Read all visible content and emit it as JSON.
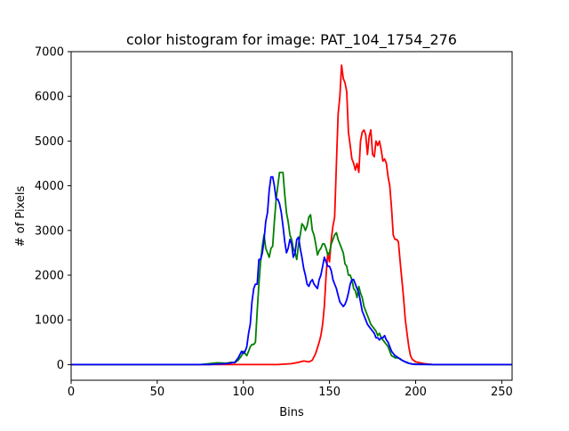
{
  "chart_data": {
    "type": "line",
    "title": "color histogram for image: PAT_104_1754_276",
    "xlabel": "Bins",
    "ylabel": "# of Pixels",
    "xlim": [
      0,
      256
    ],
    "ylim": [
      -350,
      7000
    ],
    "xticks": [
      0,
      50,
      100,
      150,
      200,
      250
    ],
    "yticks": [
      0,
      1000,
      2000,
      3000,
      4000,
      5000,
      6000,
      7000
    ],
    "grid": false,
    "legend": "none",
    "series": [
      {
        "color": "#ff0000",
        "points": [
          [
            0,
            0
          ],
          [
            60,
            0
          ],
          [
            100,
            0
          ],
          [
            110,
            0
          ],
          [
            120,
            0
          ],
          [
            128,
            20
          ],
          [
            132,
            50
          ],
          [
            135,
            80
          ],
          [
            138,
            60
          ],
          [
            140,
            100
          ],
          [
            142,
            250
          ],
          [
            144,
            500
          ],
          [
            145,
            650
          ],
          [
            146,
            900
          ],
          [
            147,
            1300
          ],
          [
            148,
            2000
          ],
          [
            149,
            2500
          ],
          [
            150,
            2300
          ],
          [
            151,
            2800
          ],
          [
            152,
            3100
          ],
          [
            153,
            3300
          ],
          [
            154,
            4500
          ],
          [
            155,
            5600
          ],
          [
            156,
            6000
          ],
          [
            157,
            6700
          ],
          [
            158,
            6400
          ],
          [
            159,
            6300
          ],
          [
            160,
            6100
          ],
          [
            161,
            5200
          ],
          [
            162,
            4900
          ],
          [
            163,
            4600
          ],
          [
            164,
            4500
          ],
          [
            165,
            4350
          ],
          [
            166,
            4500
          ],
          [
            167,
            4300
          ],
          [
            168,
            5000
          ],
          [
            169,
            5200
          ],
          [
            170,
            5250
          ],
          [
            171,
            5150
          ],
          [
            172,
            4700
          ],
          [
            173,
            5100
          ],
          [
            174,
            5250
          ],
          [
            175,
            4700
          ],
          [
            176,
            4650
          ],
          [
            177,
            5000
          ],
          [
            178,
            4900
          ],
          [
            179,
            5000
          ],
          [
            180,
            4800
          ],
          [
            181,
            4550
          ],
          [
            182,
            4600
          ],
          [
            183,
            4500
          ],
          [
            184,
            4200
          ],
          [
            185,
            4000
          ],
          [
            186,
            3500
          ],
          [
            187,
            2900
          ],
          [
            188,
            2800
          ],
          [
            189,
            2800
          ],
          [
            190,
            2750
          ],
          [
            191,
            2300
          ],
          [
            192,
            1900
          ],
          [
            193,
            1500
          ],
          [
            194,
            1000
          ],
          [
            195,
            700
          ],
          [
            196,
            400
          ],
          [
            197,
            200
          ],
          [
            198,
            120
          ],
          [
            200,
            60
          ],
          [
            205,
            20
          ],
          [
            210,
            0
          ],
          [
            256,
            0
          ]
        ]
      },
      {
        "color": "#008000",
        "points": [
          [
            0,
            0
          ],
          [
            60,
            0
          ],
          [
            75,
            0
          ],
          [
            80,
            20
          ],
          [
            85,
            40
          ],
          [
            90,
            30
          ],
          [
            93,
            50
          ],
          [
            95,
            40
          ],
          [
            97,
            100
          ],
          [
            99,
            200
          ],
          [
            100,
            300
          ],
          [
            101,
            250
          ],
          [
            102,
            200
          ],
          [
            103,
            300
          ],
          [
            104,
            400
          ],
          [
            105,
            450
          ],
          [
            106,
            450
          ],
          [
            107,
            500
          ],
          [
            108,
            1200
          ],
          [
            109,
            1800
          ],
          [
            110,
            2300
          ],
          [
            111,
            2650
          ],
          [
            112,
            2900
          ],
          [
            113,
            2600
          ],
          [
            114,
            2500
          ],
          [
            115,
            2400
          ],
          [
            116,
            2600
          ],
          [
            117,
            2650
          ],
          [
            118,
            3200
          ],
          [
            119,
            3700
          ],
          [
            120,
            4000
          ],
          [
            121,
            4300
          ],
          [
            122,
            4300
          ],
          [
            123,
            4300
          ],
          [
            124,
            3800
          ],
          [
            125,
            3400
          ],
          [
            126,
            3200
          ],
          [
            127,
            2900
          ],
          [
            128,
            2800
          ],
          [
            129,
            2600
          ],
          [
            130,
            2500
          ],
          [
            131,
            2350
          ],
          [
            132,
            2700
          ],
          [
            133,
            2900
          ],
          [
            134,
            3150
          ],
          [
            135,
            3100
          ],
          [
            136,
            3000
          ],
          [
            137,
            3100
          ],
          [
            138,
            3300
          ],
          [
            139,
            3350
          ],
          [
            140,
            3000
          ],
          [
            141,
            2900
          ],
          [
            142,
            2700
          ],
          [
            143,
            2450
          ],
          [
            144,
            2550
          ],
          [
            145,
            2600
          ],
          [
            146,
            2700
          ],
          [
            147,
            2700
          ],
          [
            148,
            2600
          ],
          [
            149,
            2450
          ],
          [
            150,
            2500
          ],
          [
            151,
            2700
          ],
          [
            152,
            2800
          ],
          [
            153,
            2900
          ],
          [
            154,
            2950
          ],
          [
            155,
            2800
          ],
          [
            156,
            2700
          ],
          [
            157,
            2600
          ],
          [
            158,
            2500
          ],
          [
            159,
            2250
          ],
          [
            160,
            2200
          ],
          [
            161,
            2000
          ],
          [
            162,
            2000
          ],
          [
            163,
            1900
          ],
          [
            164,
            1700
          ],
          [
            165,
            1650
          ],
          [
            166,
            1500
          ],
          [
            167,
            1750
          ],
          [
            168,
            1600
          ],
          [
            169,
            1500
          ],
          [
            170,
            1300
          ],
          [
            171,
            1200
          ],
          [
            172,
            1100
          ],
          [
            173,
            1000
          ],
          [
            174,
            900
          ],
          [
            175,
            850
          ],
          [
            176,
            800
          ],
          [
            177,
            750
          ],
          [
            178,
            650
          ],
          [
            179,
            700
          ],
          [
            180,
            600
          ],
          [
            181,
            550
          ],
          [
            182,
            500
          ],
          [
            183,
            450
          ],
          [
            184,
            400
          ],
          [
            185,
            300
          ],
          [
            186,
            200
          ],
          [
            187,
            180
          ],
          [
            188,
            150
          ],
          [
            189,
            150
          ],
          [
            190,
            150
          ],
          [
            191,
            120
          ],
          [
            192,
            100
          ],
          [
            193,
            80
          ],
          [
            194,
            60
          ],
          [
            195,
            40
          ],
          [
            196,
            30
          ],
          [
            197,
            20
          ],
          [
            198,
            15
          ],
          [
            200,
            10
          ],
          [
            210,
            0
          ],
          [
            256,
            0
          ]
        ]
      },
      {
        "color": "#0000ff",
        "points": [
          [
            0,
            0
          ],
          [
            60,
            0
          ],
          [
            80,
            0
          ],
          [
            90,
            20
          ],
          [
            95,
            50
          ],
          [
            97,
            150
          ],
          [
            99,
            300
          ],
          [
            100,
            250
          ],
          [
            101,
            300
          ],
          [
            102,
            400
          ],
          [
            103,
            700
          ],
          [
            104,
            900
          ],
          [
            105,
            1400
          ],
          [
            106,
            1700
          ],
          [
            107,
            1800
          ],
          [
            108,
            1800
          ],
          [
            109,
            2350
          ],
          [
            110,
            2350
          ],
          [
            111,
            2500
          ],
          [
            112,
            2800
          ],
          [
            113,
            3200
          ],
          [
            114,
            3400
          ],
          [
            115,
            3900
          ],
          [
            116,
            4200
          ],
          [
            117,
            4200
          ],
          [
            118,
            4000
          ],
          [
            119,
            3700
          ],
          [
            120,
            3700
          ],
          [
            121,
            3600
          ],
          [
            122,
            3400
          ],
          [
            123,
            3100
          ],
          [
            124,
            2750
          ],
          [
            125,
            2500
          ],
          [
            126,
            2600
          ],
          [
            127,
            2800
          ],
          [
            128,
            2700
          ],
          [
            129,
            2400
          ],
          [
            130,
            2500
          ],
          [
            131,
            2800
          ],
          [
            132,
            2850
          ],
          [
            133,
            2600
          ],
          [
            134,
            2400
          ],
          [
            135,
            2150
          ],
          [
            136,
            2000
          ],
          [
            137,
            1800
          ],
          [
            138,
            1750
          ],
          [
            139,
            1850
          ],
          [
            140,
            1900
          ],
          [
            141,
            1800
          ],
          [
            142,
            1750
          ],
          [
            143,
            1700
          ],
          [
            144,
            1900
          ],
          [
            145,
            2000
          ],
          [
            146,
            2200
          ],
          [
            147,
            2400
          ],
          [
            148,
            2300
          ],
          [
            149,
            2200
          ],
          [
            150,
            2200
          ],
          [
            151,
            2100
          ],
          [
            152,
            1900
          ],
          [
            153,
            1800
          ],
          [
            154,
            1700
          ],
          [
            155,
            1550
          ],
          [
            156,
            1400
          ],
          [
            157,
            1350
          ],
          [
            158,
            1300
          ],
          [
            159,
            1350
          ],
          [
            160,
            1450
          ],
          [
            161,
            1600
          ],
          [
            162,
            1800
          ],
          [
            163,
            1900
          ],
          [
            164,
            1900
          ],
          [
            165,
            1800
          ],
          [
            166,
            1700
          ],
          [
            167,
            1600
          ],
          [
            168,
            1400
          ],
          [
            169,
            1200
          ],
          [
            170,
            1100
          ],
          [
            171,
            1000
          ],
          [
            172,
            900
          ],
          [
            173,
            850
          ],
          [
            174,
            800
          ],
          [
            175,
            750
          ],
          [
            176,
            700
          ],
          [
            177,
            600
          ],
          [
            178,
            600
          ],
          [
            179,
            550
          ],
          [
            180,
            600
          ],
          [
            181,
            600
          ],
          [
            182,
            650
          ],
          [
            183,
            550
          ],
          [
            184,
            500
          ],
          [
            185,
            400
          ],
          [
            186,
            300
          ],
          [
            187,
            250
          ],
          [
            188,
            200
          ],
          [
            189,
            180
          ],
          [
            190,
            150
          ],
          [
            191,
            130
          ],
          [
            192,
            100
          ],
          [
            193,
            80
          ],
          [
            194,
            60
          ],
          [
            195,
            50
          ],
          [
            196,
            30
          ],
          [
            197,
            20
          ],
          [
            198,
            10
          ],
          [
            200,
            5
          ],
          [
            210,
            0
          ],
          [
            256,
            0
          ]
        ]
      }
    ]
  }
}
